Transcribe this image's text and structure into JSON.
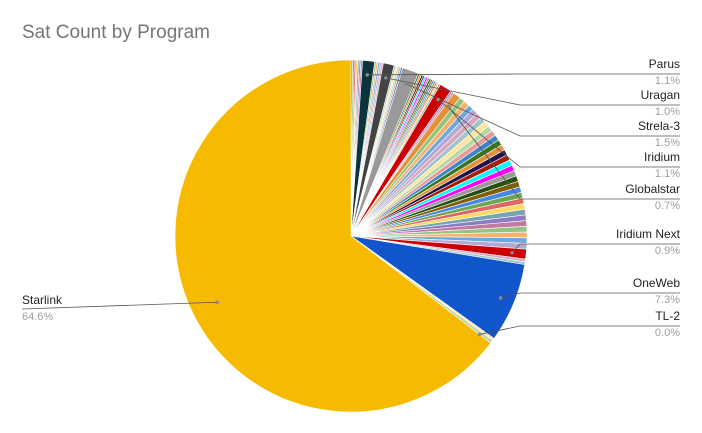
{
  "chart_data": {
    "type": "pie",
    "title": "Sat Count by Program",
    "labeled_slices": [
      {
        "name": "Starlink",
        "pct_label": "64.6%",
        "value": 64.6,
        "color": "#f6bb00"
      },
      {
        "name": "TL-2",
        "pct_label": "0.0%",
        "value": 0.0,
        "color": "#9e9e9e"
      },
      {
        "name": "OneWeb",
        "pct_label": "7.3%",
        "value": 7.3,
        "color": "#1155cc"
      },
      {
        "name": "Iridium Next",
        "pct_label": "0.9%",
        "value": 0.9,
        "color": "#cc0000"
      },
      {
        "name": "Globalstar",
        "pct_label": "0.7%",
        "value": 0.7,
        "color": "#e69138"
      },
      {
        "name": "Iridium",
        "pct_label": "1.1%",
        "value": 1.1,
        "color": "#cc0000"
      },
      {
        "name": "Strela-3",
        "pct_label": "1.5%",
        "value": 1.5,
        "color": "#999999"
      },
      {
        "name": "Uragan",
        "pct_label": "1.0%",
        "value": 1.0,
        "color": "#434343"
      },
      {
        "name": "Parus",
        "pct_label": "1.1%",
        "value": 1.1,
        "color": "#0c343d"
      }
    ],
    "other_slices_total": 21.8,
    "other_palette": [
      "#4a86e8",
      "#6aa84f",
      "#e06666",
      "#ffd966",
      "#76a5af",
      "#8e7cc3",
      "#c27ba0",
      "#93c47d",
      "#f6b26b",
      "#6fa8dc",
      "#b4a7d6",
      "#d5a6bd",
      "#a2c4c9",
      "#ffe599",
      "#b6d7a8",
      "#ea9999",
      "#3d85c6",
      "#38761d",
      "#e69138",
      "#20124d",
      "#a61c00",
      "#00ffff",
      "#ff00ff",
      "#999999",
      "#274e13",
      "#7f6000"
    ]
  }
}
